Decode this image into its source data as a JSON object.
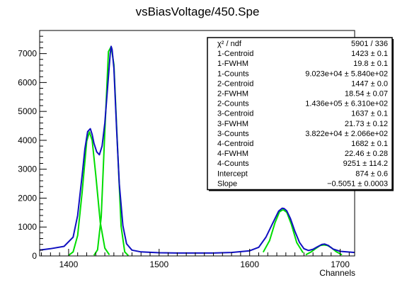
{
  "chart_data": {
    "type": "line",
    "title": "vsBiasVoltage/450.Spe",
    "xlabel": "Channels",
    "ylabel": "",
    "xlim": [
      1368,
      1716
    ],
    "ylim": [
      0,
      7800
    ],
    "x_ticks": [
      1400,
      1500,
      1600,
      1700
    ],
    "y_ticks": [
      0,
      1000,
      2000,
      3000,
      4000,
      5000,
      6000,
      7000
    ],
    "grid": false,
    "legend": "none",
    "series": [
      {
        "role": "data-histogram",
        "color": "#e00000",
        "x": [
          1368,
          1380,
          1395,
          1405,
          1410,
          1415,
          1418,
          1421,
          1424,
          1426,
          1428,
          1431,
          1434,
          1437,
          1440,
          1443,
          1446,
          1447,
          1448,
          1450,
          1453,
          1456,
          1460,
          1464,
          1470,
          1480,
          1500,
          1520,
          1540,
          1560,
          1580,
          1600,
          1610,
          1618,
          1625,
          1632,
          1636,
          1638,
          1641,
          1645,
          1650,
          1655,
          1660,
          1665,
          1670,
          1675,
          1680,
          1683,
          1687,
          1692,
          1700,
          1716
        ],
        "y": [
          280,
          330,
          400,
          700,
          1500,
          3000,
          4000,
          4600,
          4720,
          4500,
          4100,
          3700,
          3350,
          3650,
          4500,
          5900,
          7300,
          7550,
          7400,
          6700,
          4500,
          2600,
          1100,
          450,
          220,
          150,
          120,
          110,
          110,
          110,
          130,
          200,
          330,
          700,
          1200,
          1650,
          1800,
          1790,
          1700,
          1400,
          900,
          500,
          270,
          200,
          250,
          340,
          430,
          440,
          380,
          250,
          170,
          130
        ]
      },
      {
        "role": "total-fit",
        "color": "#1010c0",
        "x": [
          1368,
          1380,
          1395,
          1405,
          1410,
          1415,
          1418,
          1421,
          1424,
          1426,
          1428,
          1431,
          1434,
          1437,
          1440,
          1443,
          1446,
          1447,
          1448,
          1450,
          1453,
          1456,
          1460,
          1464,
          1470,
          1480,
          1500,
          1520,
          1540,
          1560,
          1580,
          1600,
          1610,
          1618,
          1625,
          1632,
          1636,
          1638,
          1641,
          1645,
          1650,
          1655,
          1660,
          1665,
          1670,
          1675,
          1680,
          1683,
          1687,
          1692,
          1700,
          1716
        ],
        "y": [
          200,
          250,
          330,
          650,
          1400,
          2800,
          3700,
          4300,
          4400,
          4200,
          3900,
          3600,
          3500,
          3800,
          4600,
          5800,
          7000,
          7250,
          7150,
          6500,
          4400,
          2500,
          1050,
          420,
          200,
          140,
          110,
          100,
          100,
          100,
          120,
          180,
          300,
          650,
          1100,
          1550,
          1650,
          1640,
          1560,
          1300,
          850,
          470,
          250,
          190,
          230,
          320,
          400,
          410,
          360,
          240,
          160,
          120
        ]
      },
      {
        "role": "component-1",
        "color": "#00dd00",
        "x": [
          1400,
          1405,
          1410,
          1415,
          1420,
          1423,
          1426,
          1430,
          1435,
          1440,
          1445
        ],
        "y": [
          20,
          140,
          710,
          2220,
          3970,
          4290,
          4000,
          2800,
          1150,
          270,
          40
        ]
      },
      {
        "role": "component-2",
        "color": "#00dd00",
        "x": [
          1428,
          1432,
          1436,
          1440,
          1444,
          1447,
          1450,
          1454,
          1458,
          1462,
          1466
        ],
        "y": [
          20,
          210,
          1350,
          4320,
          7070,
          7240,
          6620,
          3780,
          1020,
          140,
          10
        ]
      },
      {
        "role": "component-3",
        "color": "#00dd00",
        "x": [
          1615,
          1622,
          1628,
          1633,
          1637,
          1641,
          1646,
          1652,
          1659
        ],
        "y": [
          130,
          530,
          1150,
          1530,
          1600,
          1510,
          1100,
          460,
          110
        ]
      },
      {
        "role": "component-4",
        "color": "#00dd00",
        "x": [
          1662,
          1668,
          1674,
          1678,
          1682,
          1686,
          1690,
          1696,
          1702
        ],
        "y": [
          40,
          140,
          280,
          360,
          380,
          360,
          290,
          140,
          40
        ]
      }
    ],
    "stats_box": [
      {
        "label": "χ² / ndf",
        "value": "5901 / 336"
      },
      {
        "label": "1-Centroid",
        "value": "1423 ± 0.1"
      },
      {
        "label": "1-FWHM",
        "value": "19.8 ± 0.1"
      },
      {
        "label": "1-Counts",
        "value": "9.023e+04 ± 5.840e+02"
      },
      {
        "label": "2-Centroid",
        "value": "1447 ± 0.0"
      },
      {
        "label": "2-FWHM",
        "value": "18.54 ± 0.07"
      },
      {
        "label": "2-Counts",
        "value": "1.436e+05 ± 6.310e+02"
      },
      {
        "label": "3-Centroid",
        "value": "1637 ± 0.1"
      },
      {
        "label": "3-FWHM",
        "value": "21.73 ± 0.12"
      },
      {
        "label": "3-Counts",
        "value": "3.822e+04 ± 2.066e+02"
      },
      {
        "label": "4-Centroid",
        "value": "1682 ± 0.1"
      },
      {
        "label": "4-FWHM",
        "value": "22.46 ± 0.28"
      },
      {
        "label": "4-Counts",
        "value": "9251 ± 114.2"
      },
      {
        "label": "Intercept",
        "value": "874 ± 0.6"
      },
      {
        "label": "Slope",
        "value": "−0.5051 ± 0.0003"
      }
    ]
  }
}
